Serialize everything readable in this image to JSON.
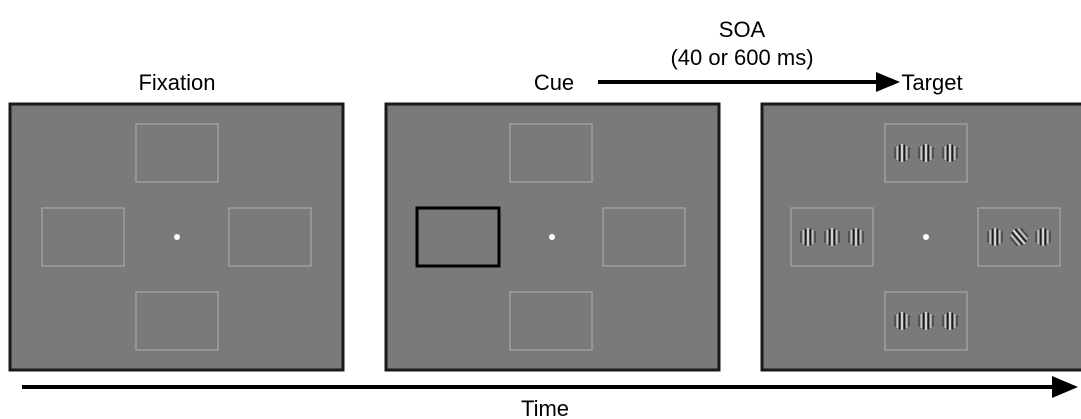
{
  "labels": {
    "fixation": "Fixation",
    "cue": "Cue",
    "target": "Target",
    "soa_title": "SOA",
    "soa_value": "(40 or 600 ms)",
    "time": "Time"
  },
  "colors": {
    "screen_fill": "#7a7a7a",
    "screen_border": "#1a1a1a",
    "placeholder": "#b0b0b0",
    "cued_placeholder": "#000000",
    "fixation_dot": "#ffffff"
  },
  "panels": [
    {
      "id": "fixation",
      "cued_position": null,
      "has_gratings": false
    },
    {
      "id": "cue",
      "cued_position": "left",
      "has_gratings": false
    },
    {
      "id": "target",
      "cued_position": null,
      "has_gratings": true,
      "grating_orientations": {
        "top": "vertical",
        "left": "vertical",
        "bottom": "vertical",
        "right": "tilted-center"
      }
    }
  ]
}
